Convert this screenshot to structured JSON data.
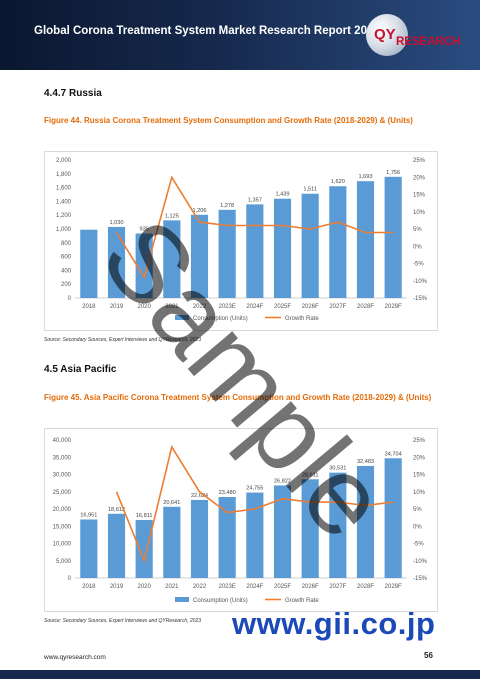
{
  "header": {
    "title": "Global Corona Treatment System Market Research Report 2023"
  },
  "logo": {
    "text_qy": "QY",
    "text_research": "RESEARCH"
  },
  "section1": {
    "heading": "4.4.7  Russia"
  },
  "figure1": {
    "caption": "Figure 44.   Russia Corona Treatment System Consumption and Growth Rate (2018-2029) & (Units)"
  },
  "source1": "Source: Secondary Sources, Expert Interviews and QYResearch, 2023",
  "section2": {
    "heading": "4.5  Asia Pacific"
  },
  "figure2": {
    "caption": "Figure 45.   Asia Pacific Corona Treatment System Consumption and Growth Rate (2018-2029) & (Units)"
  },
  "source2": "Source: Secondary Sources, Expert Interviews and QYResearch, 2023",
  "footer": {
    "url": "www.qyresearch.com",
    "page": "56"
  },
  "watermarks": {
    "sample": "Sample",
    "gii": "www.gii.co.jp"
  },
  "colors": {
    "bar": "#5b9bd5",
    "line": "#ed7d31",
    "caption": "#e36c0a",
    "header_bg": "#16294d"
  },
  "chart_data": [
    {
      "type": "bar",
      "title": "Russia Corona Treatment System Consumption and Growth Rate (2018-2029) & (Units)",
      "categories": [
        "2018",
        "2019",
        "2020",
        "2021",
        "2022",
        "2023E",
        "2024F",
        "2025F",
        "2026F",
        "2027F",
        "2028F",
        "2029F"
      ],
      "series": [
        {
          "name": "Consumption (Units)",
          "type": "bar",
          "axis": "left",
          "values": [
            990,
            1030,
            935,
            1125,
            1206,
            1278,
            1357,
            1439,
            1511,
            1620,
            1693,
            1756
          ],
          "labels": [
            "",
            "1,030",
            "935",
            "1,125",
            "1,206",
            "1,278",
            "1,357",
            "1,439",
            "1,511",
            "1,620",
            "1,693",
            "1,756"
          ]
        },
        {
          "name": "Growth Rate",
          "type": "line",
          "axis": "right",
          "start_index": 1,
          "values": [
            null,
            4,
            -9,
            20,
            7,
            6,
            6,
            6,
            5,
            7,
            4,
            4
          ]
        }
      ],
      "y_left": {
        "ticks": [
          "2,000",
          "1,800",
          "1,600",
          "1,400",
          "1,200",
          "1,000",
          "800",
          "600",
          "400",
          "200",
          "0"
        ],
        "range": [
          0,
          2000
        ]
      },
      "y_right": {
        "ticks": [
          "25%",
          "20%",
          "15%",
          "10%",
          "5%",
          "0%",
          "-5%",
          "-10%",
          "-15%"
        ],
        "range": [
          -15,
          25
        ]
      },
      "legend": "bottom"
    },
    {
      "type": "bar",
      "title": "Asia Pacific Corona Treatment System Consumption and Growth Rate (2018-2029) & (Units)",
      "categories": [
        "2018",
        "2019",
        "2020",
        "2021",
        "2022",
        "2023E",
        "2024F",
        "2025F",
        "2026F",
        "2027F",
        "2028F",
        "2029F"
      ],
      "series": [
        {
          "name": "Consumption (Units)",
          "type": "bar",
          "axis": "left",
          "values": [
            16951,
            18612,
            16811,
            20641,
            22624,
            23480,
            24755,
            26822,
            28611,
            30531,
            32483,
            34704
          ],
          "labels": [
            "16,951",
            "18,612",
            "16,811",
            "20,641",
            "22,624",
            "23,480",
            "24,755",
            "26,822",
            "28,611",
            "30,531",
            "32,483",
            "34,704"
          ]
        },
        {
          "name": "Growth Rate",
          "type": "line",
          "axis": "right",
          "start_index": 1,
          "values": [
            null,
            10,
            -10,
            23,
            10,
            4,
            5,
            8,
            7,
            7,
            6,
            7
          ]
        }
      ],
      "y_left": {
        "ticks": [
          "40,000",
          "35,000",
          "30,000",
          "25,000",
          "20,000",
          "15,000",
          "10,000",
          "5,000",
          "0"
        ],
        "range": [
          0,
          40000
        ]
      },
      "y_right": {
        "ticks": [
          "25%",
          "20%",
          "15%",
          "10%",
          "5%",
          "0%",
          "-5%",
          "-10%",
          "-15%"
        ],
        "range": [
          -15,
          25
        ]
      },
      "legend": "bottom"
    }
  ]
}
